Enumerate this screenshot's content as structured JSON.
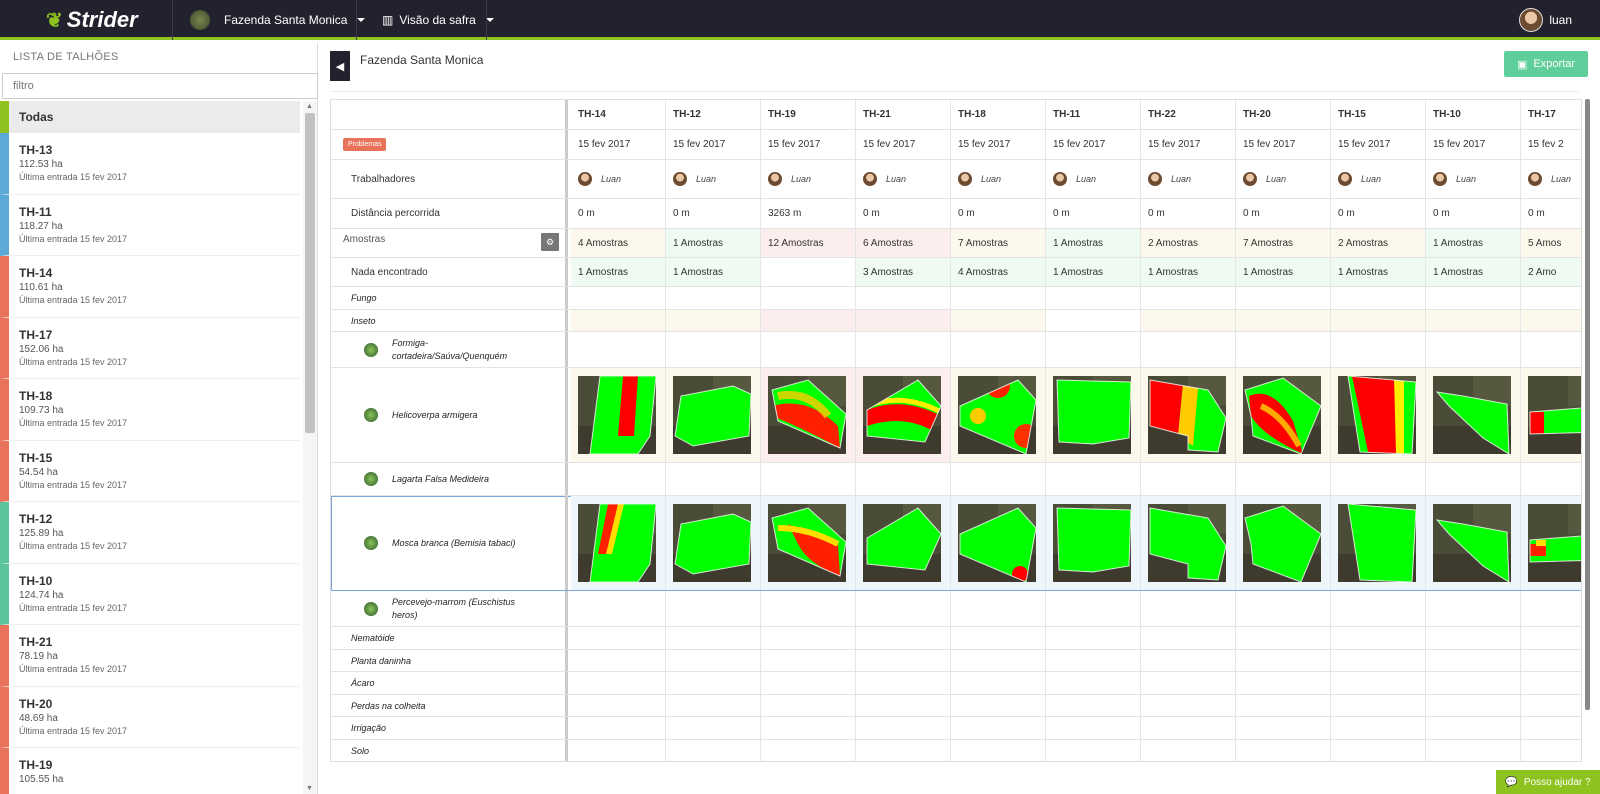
{
  "header": {
    "brand": "Strider",
    "farm_name": "Fazenda Santa Monica",
    "view_label": "Visão da safra",
    "user_name": "luan"
  },
  "sidebar": {
    "title": "LISTA DE TALHÕES",
    "filter_placeholder": "filtro",
    "all_label": "Todas",
    "items": [
      {
        "name": "TH-13",
        "area": "112.53 ha",
        "last_entry": "Última entrada 15 fev 2017",
        "color": "#5aa9d6"
      },
      {
        "name": "TH-11",
        "area": "118.27 ha",
        "last_entry": "Última entrada 15 fev 2017",
        "color": "#5aa9d6"
      },
      {
        "name": "TH-14",
        "area": "110.61 ha",
        "last_entry": "Última entrada 15 fev 2017",
        "color": "#e8735a"
      },
      {
        "name": "TH-17",
        "area": "152.06 ha",
        "last_entry": "Última entrada 15 fev 2017",
        "color": "#e8735a"
      },
      {
        "name": "TH-18",
        "area": "109.73 ha",
        "last_entry": "Última entrada 15 fev 2017",
        "color": "#e8735a"
      },
      {
        "name": "TH-15",
        "area": "54.54 ha",
        "last_entry": "Última entrada 15 fev 2017",
        "color": "#e8735a"
      },
      {
        "name": "TH-12",
        "area": "125.89 ha",
        "last_entry": "Última entrada 15 fev 2017",
        "color": "#5cc49a"
      },
      {
        "name": "TH-10",
        "area": "124.74 ha",
        "last_entry": "Última entrada 15 fev 2017",
        "color": "#5cc49a"
      },
      {
        "name": "TH-21",
        "area": "78.19 ha",
        "last_entry": "Última entrada 15 fev 2017",
        "color": "#e8735a"
      },
      {
        "name": "TH-20",
        "area": "48.69 ha",
        "last_entry": "Última entrada 15 fev 2017",
        "color": "#e8735a"
      },
      {
        "name": "TH-19",
        "area": "105.55 ha",
        "last_entry": "",
        "color": "#e8735a"
      }
    ]
  },
  "main": {
    "title": "Fazenda Santa Monica",
    "export_label": "Exportar",
    "help_label": "Posso ajudar ?",
    "problems_badge": "Problemas",
    "columns": [
      {
        "name": "TH-14",
        "date": "15 fev 2017",
        "worker": "Luan",
        "distance": "0 m",
        "samples": "4 Amostras",
        "nothing": "1 Amostras"
      },
      {
        "name": "TH-12",
        "date": "15 fev 2017",
        "worker": "Luan",
        "distance": "0 m",
        "samples": "1 Amostras",
        "nothing": "1 Amostras"
      },
      {
        "name": "TH-19",
        "date": "15 fev 2017",
        "worker": "Luan",
        "distance": "3263 m",
        "samples": "12 Amostras",
        "nothing": ""
      },
      {
        "name": "TH-21",
        "date": "15 fev 2017",
        "worker": "Luan",
        "distance": "0 m",
        "samples": "6 Amostras",
        "nothing": "3 Amostras"
      },
      {
        "name": "TH-18",
        "date": "15 fev 2017",
        "worker": "Luan",
        "distance": "0 m",
        "samples": "7 Amostras",
        "nothing": "4 Amostras"
      },
      {
        "name": "TH-11",
        "date": "15 fev 2017",
        "worker": "Luan",
        "distance": "0 m",
        "samples": "1 Amostras",
        "nothing": "1 Amostras"
      },
      {
        "name": "TH-22",
        "date": "15 fev 2017",
        "worker": "Luan",
        "distance": "0 m",
        "samples": "2 Amostras",
        "nothing": "1 Amostras"
      },
      {
        "name": "TH-20",
        "date": "15 fev 2017",
        "worker": "Luan",
        "distance": "0 m",
        "samples": "7 Amostras",
        "nothing": "1 Amostras"
      },
      {
        "name": "TH-15",
        "date": "15 fev 2017",
        "worker": "Luan",
        "distance": "0 m",
        "samples": "2 Amostras",
        "nothing": "1 Amostras"
      },
      {
        "name": "TH-10",
        "date": "15 fev 2017",
        "worker": "Luan",
        "distance": "0 m",
        "samples": "1 Amostras",
        "nothing": "1 Amostras"
      },
      {
        "name": "TH-17",
        "date": "15 fev 2",
        "worker": "Luan",
        "distance": "0 m",
        "samples": "5 Amos",
        "nothing": "2 Amo"
      }
    ],
    "rows": {
      "workers": "Trabalhadores",
      "distance": "Distância percorrida",
      "samples": "Amostras",
      "nothing": "Nada encontrado",
      "fungus": "Fungo",
      "insect": "Inseto",
      "pest1": "Formiga-cortadeira/Saúva/Quenquém",
      "pest2": "Helicoverpa armigera",
      "pest3": "Lagarta Falsa Medideira",
      "pest4": "Mosca branca (Bemisia tabaci)",
      "pest5": "Percevejo-marrom (Euschistus heros)",
      "cat_nematode": "Nematóide",
      "cat_weed": "Planta daninha",
      "cat_mite": "Ácaro",
      "cat_harvest": "Perdas na colheita",
      "cat_irrigation": "Irrigação",
      "cat_soil": "Solo"
    }
  }
}
